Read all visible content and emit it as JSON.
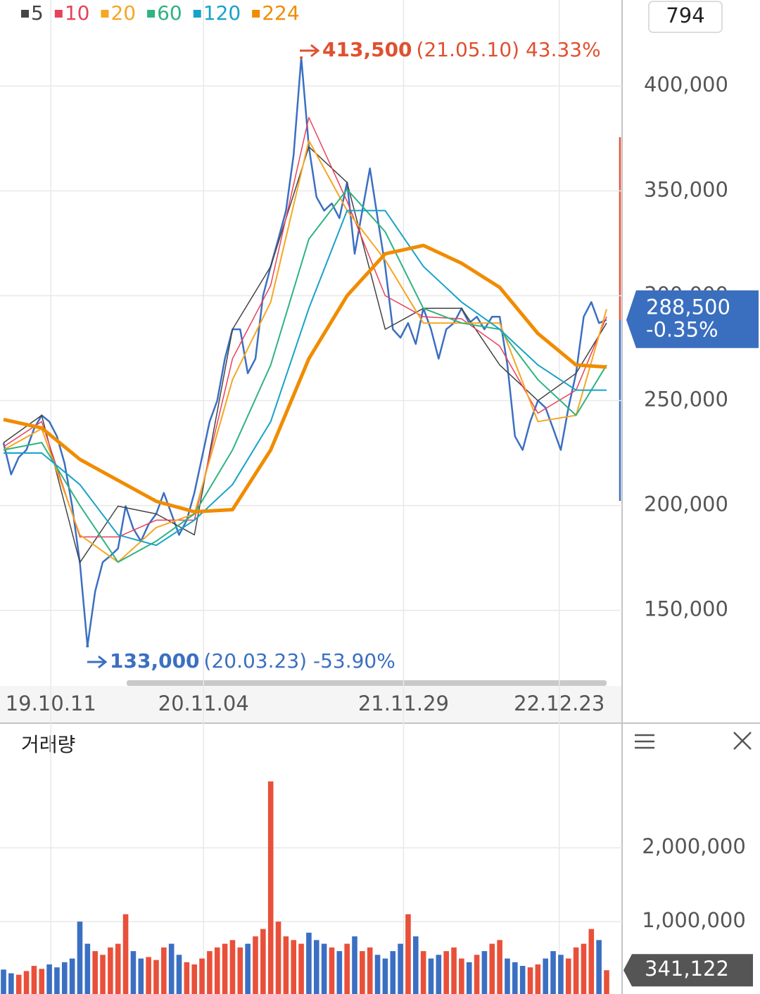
{
  "chart_data": [
    {
      "type": "line",
      "legend": "top-left",
      "badge": "794",
      "xlim": [
        0,
        79
      ],
      "xticks": [
        {
          "value": 6.2,
          "label": "19.10.11"
        },
        {
          "value": 26.2,
          "label": "20.11.04"
        },
        {
          "value": 52.4,
          "label": "21.11.29"
        },
        {
          "value": 72.8,
          "label": "22.12.23"
        }
      ],
      "ylim": [
        114000,
        441000
      ],
      "yticks": [
        {
          "value": 150000,
          "label": "150,000"
        },
        {
          "value": 200000,
          "label": "200,000"
        },
        {
          "value": 250000,
          "label": "250,000"
        },
        {
          "value": 300000,
          "label": "300,000"
        },
        {
          "value": 350000,
          "label": "350,000"
        },
        {
          "value": 400000,
          "label": "400,000"
        }
      ],
      "grid": true,
      "close": {
        "color": "#3b6fc2",
        "values": [
          229900,
          214800,
          223000,
          226500,
          236600,
          243000,
          240000,
          233000,
          220000,
          199700,
          172800,
          133000,
          159000,
          173000,
          176000,
          179500,
          199700,
          189000,
          183000,
          191000,
          196000,
          206000,
          196000,
          186000,
          193000,
          206000,
          223000,
          240000,
          250000,
          270000,
          284000,
          284000,
          263000,
          270000,
          300000,
          314000,
          327000,
          340600,
          367000,
          413500,
          371000,
          347000,
          340600,
          344000,
          337000,
          354000,
          320000,
          340600,
          360700,
          337000,
          314000,
          284000,
          280000,
          287000,
          277000,
          294000,
          284000,
          270000,
          284000,
          287000,
          294000,
          287000,
          290000,
          284000,
          290000,
          290000,
          267000,
          233000,
          226500,
          240000,
          250000,
          246600,
          236600,
          226500,
          246600,
          263000,
          290000,
          297000,
          287000,
          288500
        ]
      },
      "series": [
        {
          "name": "5",
          "color": "#444444",
          "width": 1.5,
          "x": [
            0,
            5,
            10,
            15,
            20,
            25,
            30,
            35,
            40,
            45,
            50,
            55,
            60,
            65,
            70,
            75,
            79
          ],
          "values": [
            229900,
            243000,
            172800,
            199700,
            196000,
            186000,
            284000,
            314000,
            371000,
            354000,
            284000,
            294000,
            294000,
            267000,
            250000,
            263000,
            287000
          ]
        },
        {
          "name": "10",
          "color": "#e8415a",
          "width": 1.5,
          "x": [
            0,
            5,
            10,
            15,
            20,
            25,
            30,
            35,
            40,
            45,
            50,
            55,
            60,
            65,
            70,
            75,
            79
          ],
          "values": [
            228000,
            240000,
            185000,
            185000,
            193000,
            193000,
            270000,
            305000,
            385000,
            345000,
            300000,
            290000,
            289000,
            276000,
            244000,
            255000,
            290000
          ]
        },
        {
          "name": "20",
          "color": "#f5a623",
          "width": 2,
          "x": [
            0,
            5,
            10,
            15,
            20,
            25,
            30,
            35,
            40,
            45,
            50,
            55,
            60,
            65,
            70,
            75,
            79
          ],
          "values": [
            226500,
            236600,
            186000,
            173000,
            189500,
            196000,
            260000,
            297000,
            374000,
            340600,
            317000,
            287000,
            287000,
            287000,
            240000,
            243000,
            293600
          ]
        },
        {
          "name": "60",
          "color": "#2fb380",
          "width": 2,
          "x": [
            0,
            5,
            10,
            15,
            20,
            25,
            30,
            35,
            40,
            45,
            50,
            55,
            60,
            65,
            70,
            75,
            79
          ],
          "values": [
            226500,
            230000,
            200000,
            173000,
            183000,
            196000,
            226500,
            267000,
            327000,
            350700,
            330500,
            294000,
            287000,
            284000,
            260000,
            243000,
            267000
          ]
        },
        {
          "name": "120",
          "color": "#17a2c8",
          "width": 2,
          "x": [
            0,
            5,
            10,
            15,
            20,
            25,
            30,
            35,
            40,
            45,
            50,
            55,
            60,
            65,
            70,
            75,
            79
          ],
          "values": [
            225000,
            225000,
            210000,
            186000,
            181000,
            193000,
            210000,
            240000,
            294000,
            340600,
            340600,
            314000,
            297000,
            284000,
            267000,
            255000,
            255000
          ]
        },
        {
          "name": "224",
          "color": "#f08c00",
          "width": 5,
          "x": [
            0,
            5,
            10,
            15,
            20,
            25,
            30,
            35,
            40,
            45,
            50,
            55,
            60,
            65,
            70,
            75,
            79
          ],
          "values": [
            241000,
            237000,
            222000,
            212000,
            202000,
            197000,
            198000,
            226500,
            270000,
            300000,
            320000,
            324000,
            315500,
            304000,
            282000,
            267000,
            266000
          ]
        }
      ],
      "high": {
        "value": 413500,
        "label": "413,500",
        "detail": "(21.05.10) 43.33%",
        "color": "#e0502f"
      },
      "low": {
        "value": 133000,
        "label": "133,000",
        "detail": "(20.03.23) -53.90%",
        "color": "#3b6fc2"
      },
      "current": {
        "value": 288500,
        "label": "288,500",
        "change": "-0.35%",
        "color": "#3a6fc0"
      }
    },
    {
      "type": "bar",
      "title": "거래량",
      "ylim": [
        0,
        3670000
      ],
      "yticks": [
        {
          "value": 1000000,
          "label": "1,000,000"
        },
        {
          "value": 2000000,
          "label": "2,000,000"
        }
      ],
      "grid": true,
      "up_color": "#e8503a",
      "down_color": "#3b6fc2",
      "values": [
        350000,
        300000,
        280000,
        330000,
        400000,
        360000,
        420000,
        380000,
        450000,
        500000,
        1000000,
        700000,
        600000,
        550000,
        650000,
        700000,
        1100000,
        600000,
        500000,
        520000,
        480000,
        650000,
        700000,
        550000,
        450000,
        420000,
        500000,
        600000,
        650000,
        700000,
        750000,
        650000,
        700000,
        800000,
        900000,
        2900000,
        1000000,
        800000,
        750000,
        700000,
        850000,
        750000,
        700000,
        650000,
        600000,
        700000,
        800000,
        600000,
        650000,
        550000,
        500000,
        600000,
        700000,
        1100000,
        800000,
        600000,
        500000,
        550000,
        600000,
        650000,
        500000,
        450000,
        550000,
        600000,
        700000,
        750000,
        500000,
        450000,
        400000,
        380000,
        420000,
        500000,
        600000,
        550000,
        500000,
        650000,
        700000,
        900000,
        750000,
        341122
      ],
      "current": {
        "value": 341122,
        "label": "341,122"
      }
    }
  ]
}
